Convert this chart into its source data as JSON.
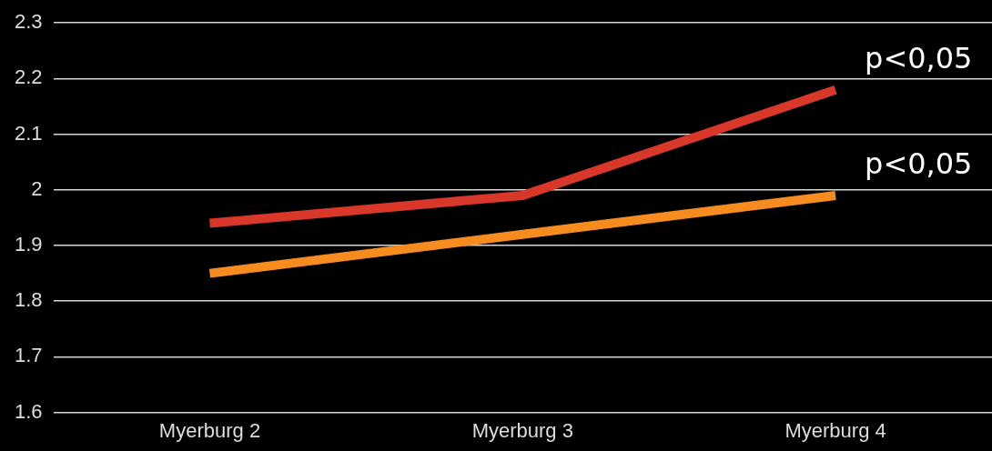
{
  "chart_data": {
    "type": "line",
    "categories": [
      "Myerburg 2",
      "Myerburg 3",
      "Myerburg 4"
    ],
    "series": [
      {
        "color": "#d9372a",
        "values": [
          1.94,
          1.99,
          2.18
        ]
      },
      {
        "color": "#f68c1f",
        "values": [
          1.85,
          1.92,
          1.99
        ]
      }
    ],
    "ylim": [
      1.6,
      2.3
    ],
    "yticks": [
      1.6,
      1.7,
      1.8,
      1.9,
      2,
      2.1,
      2.2,
      2.3
    ],
    "grid": "y",
    "legend": false,
    "marker": "none",
    "line_style": "solid",
    "annotations": [
      {
        "text": "p<0,05",
        "x": "Myerburg 4",
        "y": 2.18
      },
      {
        "text": "p<0,05",
        "x": "Myerburg 4",
        "y": 1.99
      }
    ]
  }
}
